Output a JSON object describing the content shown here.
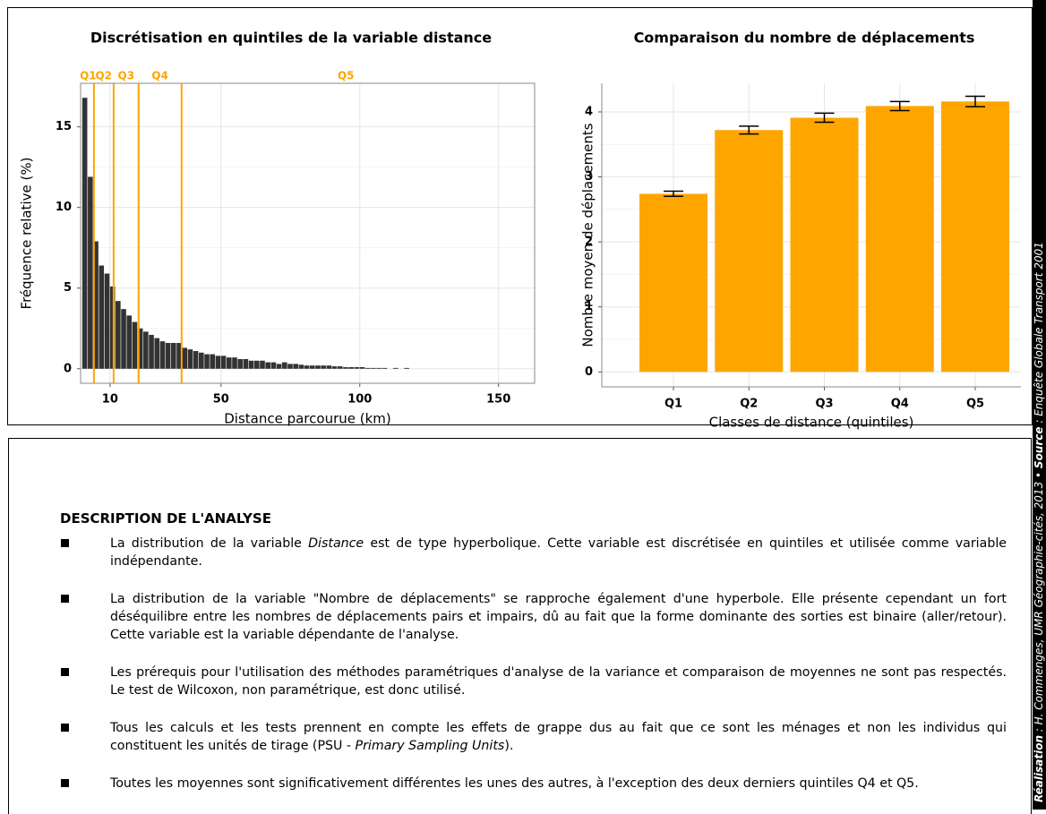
{
  "chart_data": [
    {
      "type": "histogram",
      "title": "Discrétisation en quintiles de la variable distance",
      "x_label": "Distance parcourue (km)",
      "y_label": "Fréquence relative (%)",
      "bins": [
        0,
        2,
        4,
        6,
        8,
        10,
        12,
        14,
        16,
        18,
        20,
        22,
        24,
        26,
        28,
        30,
        32,
        34,
        36,
        38,
        40,
        42,
        44,
        46,
        48,
        50,
        52,
        54,
        56,
        58,
        60,
        62,
        64,
        66,
        68,
        70,
        72,
        74,
        76,
        78,
        80,
        82,
        84,
        86,
        88,
        90,
        92,
        94,
        96,
        98,
        100,
        102,
        104,
        106,
        108,
        110,
        112,
        114,
        116,
        118
      ],
      "counts": [
        16.8,
        11.9,
        7.9,
        6.4,
        5.9,
        5.1,
        4.2,
        3.7,
        3.3,
        2.9,
        2.5,
        2.3,
        2.1,
        1.9,
        1.7,
        1.6,
        1.6,
        1.6,
        1.3,
        1.2,
        1.1,
        1.0,
        0.9,
        0.9,
        0.8,
        0.8,
        0.7,
        0.7,
        0.6,
        0.6,
        0.5,
        0.5,
        0.5,
        0.4,
        0.4,
        0.3,
        0.4,
        0.3,
        0.3,
        0.25,
        0.2,
        0.2,
        0.2,
        0.2,
        0.2,
        0.15,
        0.15,
        0.1,
        0.1,
        0.1,
        0.1,
        0.05,
        0.05,
        0.05,
        0.05,
        null,
        0.05,
        null,
        0.05
      ],
      "color": "#333333",
      "quintile_breaks": [
        4.2,
        11.3,
        20.3,
        35.8
      ],
      "quintile_labels": [
        {
          "text": "Q1",
          "x": 2.1
        },
        {
          "text": "Q2",
          "x": 7.7
        },
        {
          "text": "Q3",
          "x": 15.8
        },
        {
          "text": "Q4",
          "x": 28
        },
        {
          "text": "Q5",
          "x": 95
        }
      ],
      "quintile_color": "#FFA500",
      "xlim": [
        -0.6,
        163
      ],
      "xticks": [
        10,
        50,
        100,
        150
      ],
      "ylim": [
        -0.9,
        17.7
      ],
      "yticks": [
        0,
        5,
        10,
        15
      ],
      "grid": true
    },
    {
      "type": "bar",
      "title": "Comparaison du nombre de déplacements",
      "x_label": "Classes de distance (quintiles)",
      "y_label": "Nombre moyen de déplacements",
      "categories": [
        "Q1",
        "Q2",
        "Q3",
        "Q4",
        "Q5"
      ],
      "values": [
        2.74,
        3.72,
        3.91,
        4.09,
        4.16
      ],
      "errors": [
        0.04,
        0.06,
        0.07,
        0.07,
        0.08
      ],
      "color": "#FFA500",
      "ylim": [
        -0.23,
        4.44
      ],
      "yticks": [
        0,
        1,
        2,
        3,
        4
      ],
      "grid": true
    }
  ],
  "credit": [
    {
      "text": "Réalisation",
      "bold": true
    },
    {
      "text": " : H. Commenges, UMR Géographie-cités, 2013 • "
    },
    {
      "text": "Source",
      "bold": true
    },
    {
      "text": " : Enquête Globale Transport 2001"
    }
  ],
  "description": {
    "title": "DESCRIPTION DE L'ANALYSE",
    "bullets": [
      [
        {
          "text": "La distribution de la variable "
        },
        {
          "text": "Distance",
          "italic": true
        },
        {
          "text": " est de type hyperbolique. Cette variable est discrétisée en quintiles et utilisée comme variable indépendante."
        }
      ],
      [
        {
          "text": "La distribution de la variable \"Nombre de déplacements\" se rapproche également d'une hyperbole. Elle présente cependant un fort déséquilibre entre les nombres de déplacements pairs et impairs, dû au fait que la forme dominante des sorties est binaire (aller/retour). Cette variable est la variable dépendante de l'analyse."
        }
      ],
      [
        {
          "text": "Les prérequis pour l'utilisation des méthodes paramétriques d'analyse de la variance et comparaison de moyennes ne sont pas respectés. Le test de Wilcoxon, non paramétrique, est donc utilisé."
        }
      ],
      [
        {
          "text": "Tous les calculs et les tests prennent en compte les effets de grappe dus au fait que ce sont les ménages et non les individus qui constituent les unités de tirage (PSU - "
        },
        {
          "text": "Primary Sampling Units",
          "italic": true
        },
        {
          "text": ")."
        }
      ],
      [
        {
          "text": "Toutes les moyennes sont significativement différentes les unes des autres, à l'exception des deux derniers quintiles Q4 et Q5."
        }
      ]
    ]
  }
}
